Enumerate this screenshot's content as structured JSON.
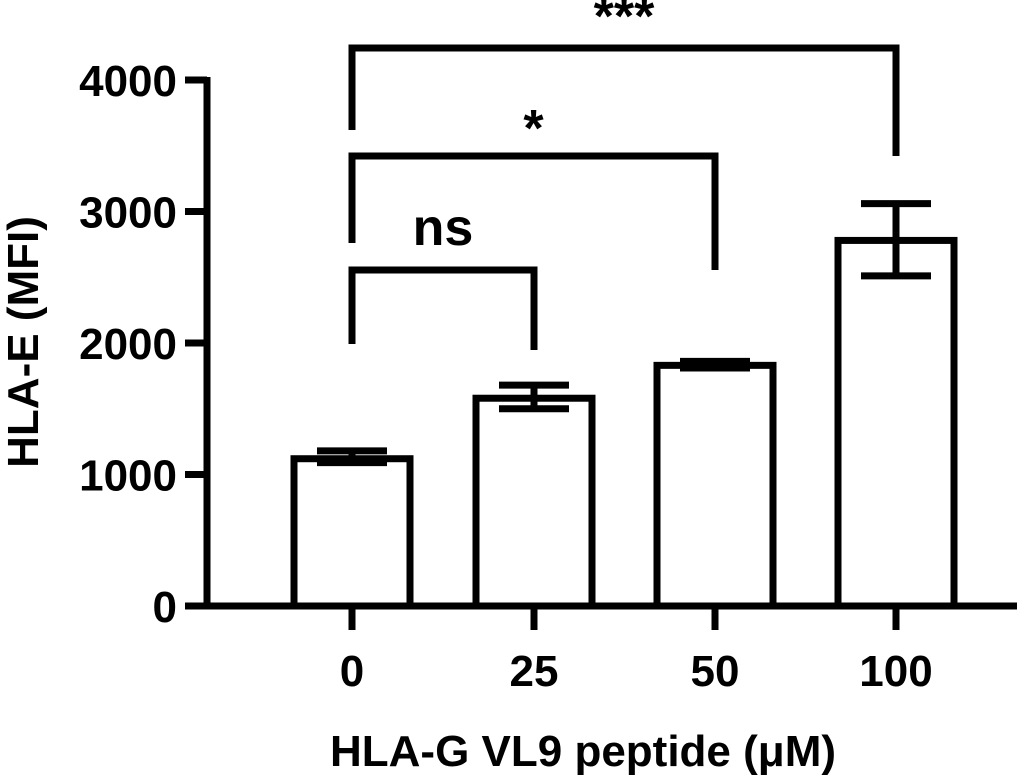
{
  "chart_data": {
    "type": "bar",
    "categories": [
      "0",
      "25",
      "50",
      "100"
    ],
    "values": [
      1120,
      1580,
      1830,
      2780
    ],
    "errors": [
      [
        1090,
        1180
      ],
      [
        1500,
        1680
      ],
      [
        1810,
        1860
      ],
      [
        2510,
        3060
      ]
    ],
    "xlabel": "HLA-G VL9 peptide (μM)",
    "ylabel": "HLA-E (MFI)",
    "ylim": [
      0,
      4000
    ],
    "yticks": [
      "0",
      "1000",
      "2000",
      "3000",
      "4000"
    ],
    "grid": false,
    "bar_fill": "#ffffff",
    "stroke_color": "#000000",
    "comparisons": [
      {
        "from": 0,
        "to": 1,
        "label": "ns"
      },
      {
        "from": 0,
        "to": 2,
        "label": "*"
      },
      {
        "from": 0,
        "to": 3,
        "label": "***"
      }
    ]
  }
}
